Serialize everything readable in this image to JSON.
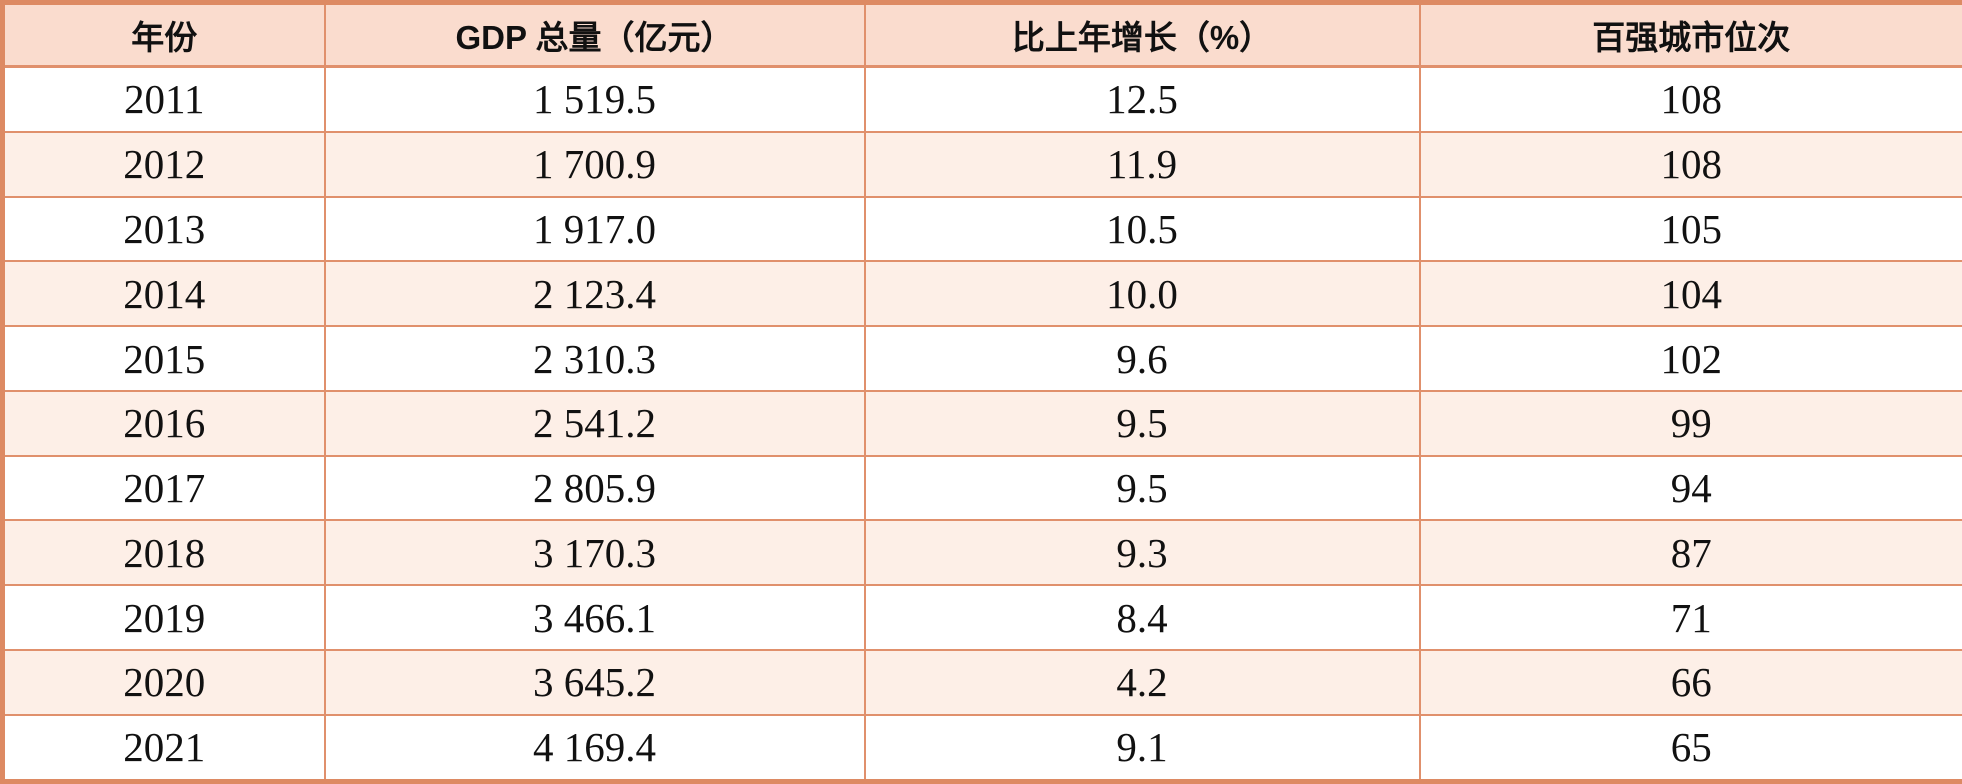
{
  "chart_data": {
    "type": "table",
    "columns": [
      "年份",
      "GDP 总量（亿元）",
      "比上年增长（%）",
      "百强城市位次"
    ],
    "rows": [
      [
        "2011",
        "1 519.5",
        "12.5",
        "108"
      ],
      [
        "2012",
        "1 700.9",
        "11.9",
        "108"
      ],
      [
        "2013",
        "1 917.0",
        "10.5",
        "105"
      ],
      [
        "2014",
        "2 123.4",
        "10.0",
        "104"
      ],
      [
        "2015",
        "2 310.3",
        "9.6",
        "102"
      ],
      [
        "2016",
        "2 541.2",
        "9.5",
        "99"
      ],
      [
        "2017",
        "2 805.9",
        "9.5",
        "94"
      ],
      [
        "2018",
        "3 170.3",
        "9.3",
        "87"
      ],
      [
        "2019",
        "3 466.1",
        "8.4",
        "71"
      ],
      [
        "2020",
        "3 645.2",
        "4.2",
        "66"
      ],
      [
        "2021",
        "4 169.4",
        "9.1",
        "65"
      ]
    ],
    "layout_hints": {
      "striped_rows": "even data rows tinted",
      "all_cells_centered": true
    }
  },
  "style": {
    "outer_border_color": "#dd8a63",
    "inner_border_color": "#e0906c",
    "header_bg": "#fadcce",
    "alt_row_bg": "#fdefe7",
    "text_color": "#111111"
  }
}
